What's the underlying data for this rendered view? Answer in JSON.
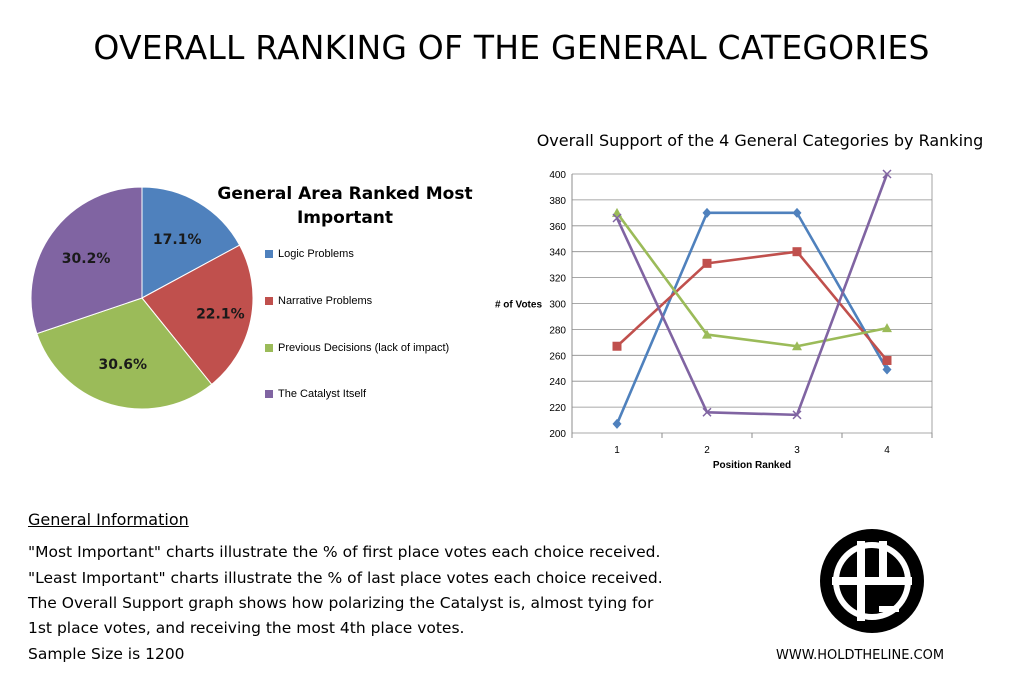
{
  "page": {
    "title": "OVERALL RANKING OF THE GENERAL CATEGORIES",
    "website": "WWW.HOLDTHELINE.COM",
    "logo_name": "hold-the-line-logo"
  },
  "info": {
    "heading": "General Information",
    "lines": [
      "\"Most Important\" charts illustrate the % of first place votes each choice received.",
      "\"Least Important\" charts illustrate the % of last place votes each choice received.",
      "The Overall Support graph shows how polarizing the Catalyst is, almost tying for",
      "1st place votes, and receiving the most 4th place votes.",
      "Sample Size is 1200"
    ]
  },
  "chart_data": [
    {
      "type": "pie",
      "title": "General Area Ranked Most Important",
      "categories": [
        "Logic Problems",
        "Narrative Problems",
        "Previous Decisions (lack of impact)",
        "The Catalyst Itself"
      ],
      "values": [
        17.1,
        22.1,
        30.6,
        30.2
      ],
      "labels": [
        "17.1%",
        "22.1%",
        "30.6%",
        "30.2%"
      ],
      "colors": [
        "#4f81bd",
        "#c0504d",
        "#9bbb59",
        "#8064a2"
      ],
      "legend": "right"
    },
    {
      "type": "line",
      "title": "Overall Support of the 4 General Categories by Ranking",
      "xlabel": "Position Ranked",
      "ylabel": "# of Votes",
      "x": [
        1,
        2,
        3,
        4
      ],
      "ylim": [
        200,
        400
      ],
      "yticks": [
        200,
        220,
        240,
        260,
        280,
        300,
        320,
        340,
        360,
        380,
        400
      ],
      "grid": true,
      "series": [
        {
          "name": "Logic Problems",
          "color": "#4f81bd",
          "marker": "diamond",
          "values": [
            207,
            370,
            370,
            249
          ]
        },
        {
          "name": "Narrative Problems",
          "color": "#c0504d",
          "marker": "square",
          "values": [
            267,
            331,
            340,
            256
          ]
        },
        {
          "name": "Previous Decisions (lack of impact)",
          "color": "#9bbb59",
          "marker": "triangle",
          "values": [
            370,
            276,
            267,
            281
          ]
        },
        {
          "name": "The Catalyst Itself",
          "color": "#8064a2",
          "marker": "x",
          "values": [
            366,
            216,
            214,
            400
          ]
        }
      ]
    }
  ]
}
